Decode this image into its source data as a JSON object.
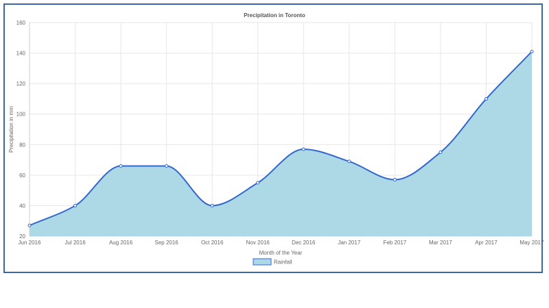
{
  "chart_data": {
    "type": "area",
    "title": "Precipitation in Toronto",
    "xlabel": "Month of the Year",
    "ylabel": "Precipitation in mm",
    "categories": [
      "Jun 2016",
      "Jul 2016",
      "Aug 2016",
      "Sep 2016",
      "Oct 2016",
      "Nov 2016",
      "Dec 2016",
      "Jan 2017",
      "Feb 2017",
      "Mar 2017",
      "Apr 2017",
      "May 2017"
    ],
    "series": [
      {
        "name": "Rainfall",
        "values": [
          27,
          40,
          66,
          66,
          40,
          55,
          77,
          69,
          57,
          75,
          110,
          141
        ]
      }
    ],
    "ylim": [
      20,
      160
    ],
    "yticks": [
      20,
      40,
      60,
      80,
      100,
      120,
      140,
      160
    ],
    "grid": true,
    "legend_position": "bottom",
    "colors": {
      "fill": "#add8e6",
      "line": "#3366cc",
      "frame": "#3c64ad"
    }
  }
}
